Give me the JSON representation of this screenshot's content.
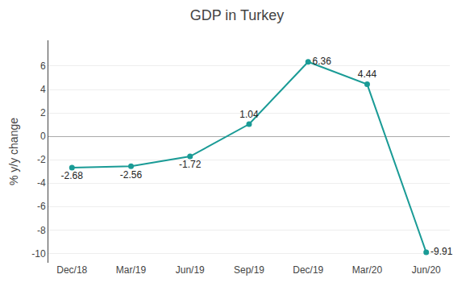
{
  "chart_data": {
    "type": "line",
    "title": "GDP in Turkey",
    "ylabel": "% y/y change",
    "categories": [
      "Dec/18",
      "Mar/19",
      "Jun/19",
      "Sep/19",
      "Dec/19",
      "Mar/20",
      "Jun/20"
    ],
    "values": [
      -2.68,
      -2.56,
      -1.72,
      1.04,
      6.36,
      4.44,
      -9.91
    ],
    "color": "#1a9b96",
    "marker": "circle",
    "ylim": [
      -10.8,
      8.2
    ],
    "yticks": [
      -10,
      -8,
      -6,
      -4,
      -2,
      0,
      2,
      4,
      6
    ],
    "grid": true,
    "data_labels": true
  }
}
